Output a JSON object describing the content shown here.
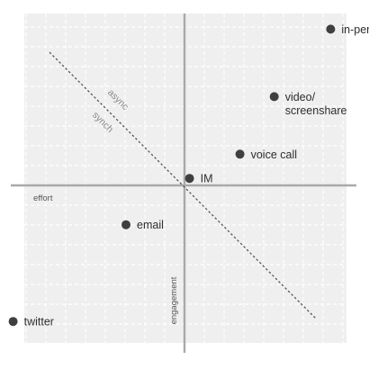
{
  "diagram": {
    "x_axis_label": "effort",
    "y_axis_label": "engagement",
    "divider_labels": {
      "upper": "async",
      "lower": "synch"
    },
    "points": [
      {
        "id": "in-person",
        "lines": [
          "in-person"
        ],
        "effort": 1.45,
        "engagement": 1.55
      },
      {
        "id": "video-screenshare",
        "lines": [
          "video/",
          "screenshare"
        ],
        "effort": 0.89,
        "engagement": 0.88
      },
      {
        "id": "voice-call",
        "lines": [
          "voice call"
        ],
        "effort": 0.55,
        "engagement": 0.31
      },
      {
        "id": "im",
        "lines": [
          "IM"
        ],
        "effort": 0.05,
        "engagement": 0.07
      },
      {
        "id": "email",
        "lines": [
          "email"
        ],
        "effort": -0.58,
        "engagement": -0.39
      },
      {
        "id": "twitter",
        "lines": [
          "twitter"
        ],
        "effort": -1.7,
        "engagement": -1.35
      }
    ],
    "colors": {
      "background": "#ffffff",
      "grid_fill": "#efefef",
      "grid_line": "#ffffff",
      "axis": "#a9a9a9",
      "point": "#3f3f3f",
      "divider": "#4a4a4a"
    }
  }
}
